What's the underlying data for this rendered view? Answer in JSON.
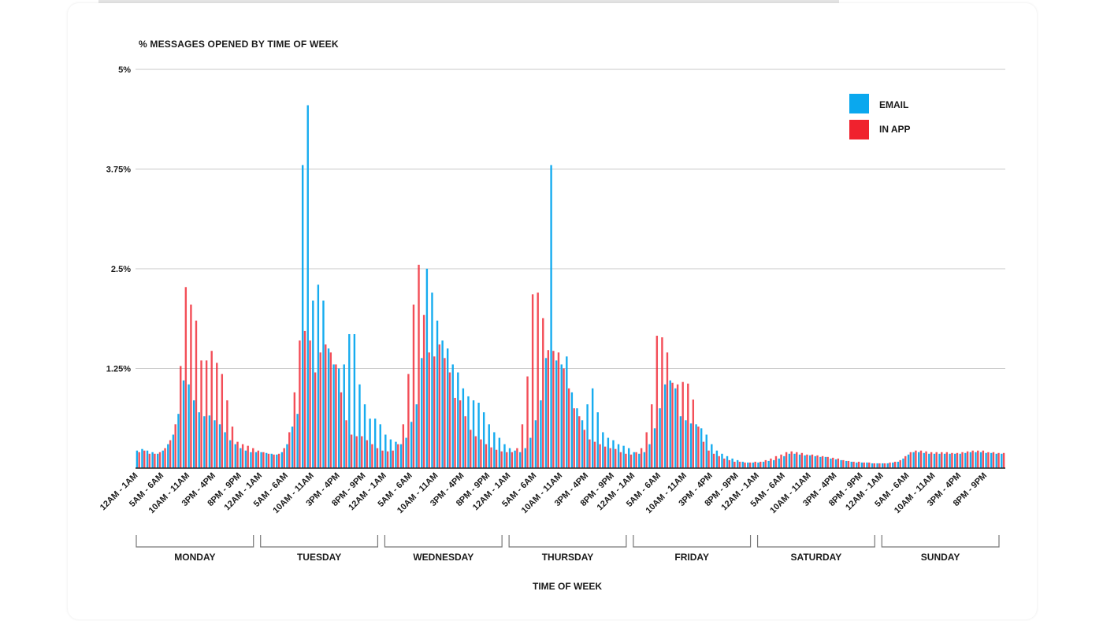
{
  "chart_data": {
    "type": "bar",
    "title": "% MESSAGES OPENED BY TIME OF WEEK",
    "xlabel": "TIME OF WEEK",
    "ylabel": "",
    "ylim": [
      0,
      5
    ],
    "y_ticks": [
      "5%",
      "3.75%",
      "2.5%",
      "1.25%"
    ],
    "y_tick_values": [
      5,
      3.75,
      2.5,
      1.25
    ],
    "grid": true,
    "legend_position": "top-right",
    "x_tick_labels": [
      "12AM - 1AM",
      "5AM - 6AM",
      "10AM - 11AM",
      "3PM - 4PM",
      "8PM - 9PM"
    ],
    "days": [
      "MONDAY",
      "TUESDAY",
      "WEDNESDAY",
      "THURSDAY",
      "FRIDAY",
      "SATURDAY",
      "SUNDAY"
    ],
    "series": [
      {
        "name": "EMAIL",
        "color": "#0aa8ee",
        "values": [
          [
            0.22,
            0.24,
            0.22,
            0.2,
            0.18,
            0.22,
            0.3,
            0.42,
            0.68,
            1.1,
            1.05,
            0.85,
            0.7,
            0.65,
            0.66,
            0.6,
            0.55,
            0.45,
            0.35,
            0.3,
            0.25,
            0.22,
            0.2,
            0.2
          ],
          [
            0.2,
            0.19,
            0.18,
            0.17,
            0.2,
            0.3,
            0.52,
            0.68,
            3.8,
            4.55,
            2.1,
            2.3,
            2.1,
            1.5,
            1.3,
            1.25,
            1.3,
            1.68,
            1.68,
            1.05,
            0.8,
            0.62,
            0.62,
            0.55
          ],
          [
            0.42,
            0.36,
            0.33,
            0.3,
            0.38,
            0.58,
            0.8,
            1.38,
            2.5,
            2.2,
            1.85,
            1.6,
            1.5,
            1.3,
            1.2,
            1.0,
            0.9,
            0.85,
            0.82,
            0.7,
            0.55,
            0.45,
            0.38,
            0.3
          ],
          [
            0.25,
            0.22,
            0.2,
            0.25,
            0.38,
            0.6,
            0.85,
            1.38,
            3.8,
            1.35,
            1.3,
            1.4,
            0.95,
            0.75,
            0.6,
            0.8,
            1.0,
            0.7,
            0.45,
            0.38,
            0.35,
            0.3,
            0.28,
            0.25
          ],
          [
            0.2,
            0.18,
            0.2,
            0.3,
            0.5,
            0.75,
            1.05,
            1.1,
            1.0,
            0.65,
            0.6,
            0.56,
            0.55,
            0.5,
            0.42,
            0.3,
            0.22,
            0.18,
            0.15,
            0.12,
            0.1,
            0.08,
            0.07,
            0.07
          ],
          [
            0.07,
            0.08,
            0.09,
            0.1,
            0.12,
            0.15,
            0.18,
            0.18,
            0.17,
            0.16,
            0.16,
            0.15,
            0.14,
            0.14,
            0.12,
            0.11,
            0.1,
            0.09,
            0.08,
            0.07,
            0.07,
            0.07,
            0.06,
            0.06
          ],
          [
            0.06,
            0.06,
            0.07,
            0.08,
            0.12,
            0.17,
            0.2,
            0.2,
            0.19,
            0.18,
            0.18,
            0.18,
            0.18,
            0.18,
            0.18,
            0.18,
            0.19,
            0.2,
            0.2,
            0.2,
            0.19,
            0.19,
            0.18,
            0.18
          ]
        ]
      },
      {
        "name": "IN APP",
        "color": "#f0222e",
        "values": [
          [
            0.2,
            0.22,
            0.18,
            0.18,
            0.2,
            0.25,
            0.35,
            0.55,
            1.28,
            2.27,
            2.05,
            1.85,
            1.35,
            1.35,
            1.47,
            1.32,
            1.18,
            0.85,
            0.52,
            0.33,
            0.3,
            0.28,
            0.25,
            0.22
          ],
          [
            0.2,
            0.18,
            0.17,
            0.18,
            0.25,
            0.45,
            0.95,
            1.6,
            1.72,
            1.6,
            1.2,
            1.45,
            1.55,
            1.45,
            1.3,
            0.95,
            0.6,
            0.42,
            0.4,
            0.4,
            0.35,
            0.3,
            0.25,
            0.22
          ],
          [
            0.21,
            0.22,
            0.3,
            0.55,
            1.18,
            2.05,
            2.55,
            1.92,
            1.45,
            1.4,
            1.55,
            1.38,
            1.2,
            0.88,
            0.85,
            0.65,
            0.48,
            0.4,
            0.36,
            0.3,
            0.26,
            0.23,
            0.21,
            0.2
          ],
          [
            0.2,
            0.25,
            0.55,
            1.15,
            2.18,
            2.2,
            1.88,
            1.48,
            1.47,
            1.45,
            1.25,
            1.0,
            0.75,
            0.65,
            0.48,
            0.36,
            0.33,
            0.3,
            0.27,
            0.25,
            0.24,
            0.2,
            0.18,
            0.17
          ],
          [
            0.2,
            0.25,
            0.45,
            0.8,
            1.66,
            1.64,
            1.45,
            1.07,
            1.05,
            1.08,
            1.06,
            0.86,
            0.52,
            0.33,
            0.22,
            0.18,
            0.15,
            0.12,
            0.1,
            0.08,
            0.08,
            0.07,
            0.07,
            0.08
          ],
          [
            0.08,
            0.1,
            0.12,
            0.15,
            0.17,
            0.2,
            0.21,
            0.2,
            0.19,
            0.17,
            0.17,
            0.16,
            0.15,
            0.14,
            0.13,
            0.12,
            0.1,
            0.09,
            0.08,
            0.08,
            0.07,
            0.07,
            0.06,
            0.06
          ],
          [
            0.06,
            0.07,
            0.08,
            0.1,
            0.15,
            0.2,
            0.22,
            0.22,
            0.21,
            0.2,
            0.2,
            0.2,
            0.2,
            0.19,
            0.19,
            0.2,
            0.21,
            0.22,
            0.22,
            0.22,
            0.2,
            0.2,
            0.19,
            0.19
          ]
        ]
      }
    ]
  }
}
